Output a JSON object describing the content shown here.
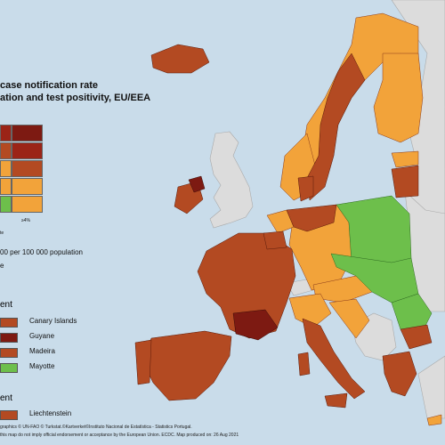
{
  "title": {
    "line1": "case notification rate",
    "line2": "ation and test positivity, EU/EEA"
  },
  "matrix": {
    "rows": [
      [
        "#9b2417",
        "#7d1a12"
      ],
      [
        "#b34a22",
        "#9b2417"
      ],
      [
        "#f2a33a",
        "#b34a22"
      ],
      [
        "#f2a33a",
        "#f2a33a"
      ],
      [
        "#6dbf4b",
        "#f2a33a"
      ]
    ],
    "axis_end_label": "≥4%",
    "axis_label": "te"
  },
  "rate_caption": "00 per 100 000 population",
  "rate_caption_2": "e",
  "sections": {
    "outermost": "ent",
    "outermost_items": [
      {
        "label": "Canary Islands",
        "color": "#b34a22"
      },
      {
        "label": "Guyane",
        "color": "#7d1a12"
      },
      {
        "label": "Madeira",
        "color": "#b34a22"
      },
      {
        "label": "Mayotte",
        "color": "#6dbf4b"
      }
    ],
    "other": "ent",
    "other_items": [
      {
        "label": "Liechtenstein",
        "color": "#b34a22"
      }
    ]
  },
  "footer": {
    "line1": "graphics © UN-FAO © Turkstat.©Kartverket©Instituto Nacional de Estatística - Statistics Portugal.",
    "line2": "this map do not imply official endorsement or acceptance by the European Union. ECDC. Map produced on: 26 Aug 2021"
  },
  "colors": {
    "sea": "#c9dcea",
    "non_eu": "#dcdcdc",
    "dark_red": "#7d1a12",
    "red": "#b34a22",
    "orange": "#f2a33a",
    "green": "#6dbf4b"
  }
}
